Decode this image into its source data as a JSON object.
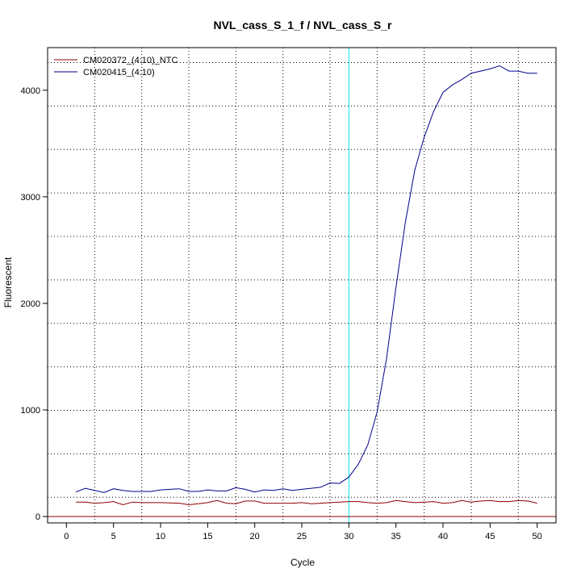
{
  "chart_data": {
    "type": "line",
    "title": "NVL_cass_S_1_f / NVL_cass_S_r",
    "xlabel": "Cycle",
    "ylabel": "Fluorescent",
    "xlim": [
      -2,
      52
    ],
    "ylim": [
      -60,
      4400
    ],
    "x_ticks": [
      "0",
      "5",
      "10",
      "15",
      "20",
      "25",
      "30",
      "35",
      "40",
      "45",
      "50"
    ],
    "x_tick_values": [
      0,
      5,
      10,
      15,
      20,
      25,
      30,
      35,
      40,
      45,
      50
    ],
    "y_ticks": [
      "0",
      "1000",
      "2000",
      "3000",
      "4000"
    ],
    "y_tick_values": [
      0,
      1000,
      2000,
      3000,
      4000
    ],
    "x_grid": [
      3,
      8,
      13,
      18,
      23,
      28,
      33,
      38,
      43,
      48
    ],
    "y_grid": [
      180,
      588,
      996,
      1404,
      1812,
      2220,
      2628,
      3036,
      3444,
      3852,
      4260
    ],
    "grid": true,
    "legend_position": "top-left",
    "threshold_x": 30,
    "threshold_color": "#00e5ee",
    "baseline_y": 0,
    "baseline_color": "#8b0000",
    "x": [
      1,
      2,
      3,
      4,
      5,
      6,
      7,
      8,
      9,
      10,
      11,
      12,
      13,
      14,
      15,
      16,
      17,
      18,
      19,
      20,
      21,
      22,
      23,
      24,
      25,
      26,
      27,
      28,
      29,
      30,
      31,
      32,
      33,
      34,
      35,
      36,
      37,
      38,
      39,
      40,
      41,
      42,
      43,
      44,
      45,
      46,
      47,
      48,
      49,
      50
    ],
    "series": [
      {
        "name": "CM020372_(4:10)_NTC",
        "color": "#8b0000",
        "values": [
          135,
          135,
          125,
          130,
          140,
          110,
          135,
          130,
          130,
          130,
          128,
          125,
          110,
          120,
          130,
          150,
          125,
          120,
          145,
          145,
          125,
          125,
          125,
          125,
          130,
          120,
          125,
          130,
          135,
          140,
          140,
          130,
          125,
          130,
          150,
          140,
          130,
          135,
          140,
          125,
          130,
          150,
          135,
          145,
          150,
          140,
          140,
          150,
          145,
          125
        ]
      },
      {
        "name": "CM020415_(4:10)",
        "color": "#00008b",
        "values": [
          230,
          265,
          245,
          225,
          260,
          245,
          235,
          235,
          235,
          250,
          255,
          260,
          235,
          235,
          250,
          240,
          240,
          270,
          255,
          230,
          250,
          245,
          260,
          245,
          255,
          265,
          275,
          315,
          310,
          370,
          490,
          670,
          980,
          1480,
          2150,
          2760,
          3250,
          3560,
          3800,
          3980,
          4050,
          4100,
          4160,
          4180,
          4200,
          4230,
          4180,
          4180,
          4160,
          4160
        ]
      }
    ]
  }
}
